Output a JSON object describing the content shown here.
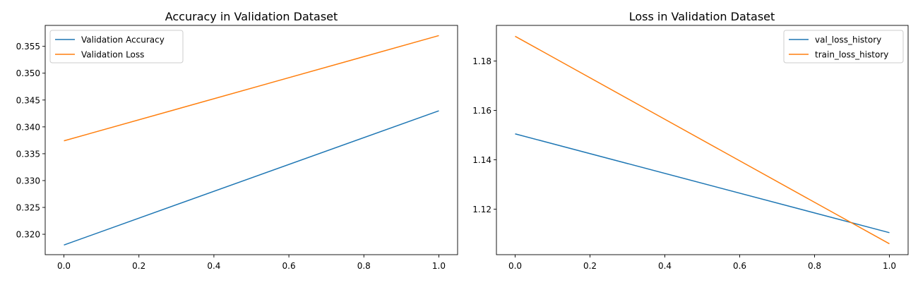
{
  "chart_data": [
    {
      "type": "line",
      "title": "Accuracy in Validation Dataset",
      "xlabel": "",
      "ylabel": "",
      "xlim": [
        -0.05,
        1.05
      ],
      "ylim": [
        0.3162,
        0.3589
      ],
      "xticks": [
        0.0,
        0.2,
        0.4,
        0.6,
        0.8,
        1.0
      ],
      "xtick_labels": [
        "0.0",
        "0.2",
        "0.4",
        "0.6",
        "0.8",
        "1.0"
      ],
      "yticks": [
        0.32,
        0.325,
        0.33,
        0.335,
        0.34,
        0.345,
        0.35,
        0.355
      ],
      "ytick_labels": [
        "0.320",
        "0.325",
        "0.330",
        "0.335",
        "0.340",
        "0.345",
        "0.350",
        "0.355"
      ],
      "legend_position": "upper-left",
      "grid": false,
      "series": [
        {
          "name": "Validation Accuracy",
          "color": "#1f77b4",
          "x": [
            0,
            1
          ],
          "y": [
            0.318,
            0.343
          ]
        },
        {
          "name": "Validation Loss",
          "color": "#ff7f0e",
          "x": [
            0,
            1
          ],
          "y": [
            0.3374,
            0.357
          ]
        }
      ]
    },
    {
      "type": "line",
      "title": "Loss in Validation Dataset",
      "xlabel": "",
      "ylabel": "",
      "xlim": [
        -0.05,
        1.05
      ],
      "ylim": [
        1.1016,
        1.1944
      ],
      "xticks": [
        0.0,
        0.2,
        0.4,
        0.6,
        0.8,
        1.0
      ],
      "xtick_labels": [
        "0.0",
        "0.2",
        "0.4",
        "0.6",
        "0.8",
        "1.0"
      ],
      "yticks": [
        1.12,
        1.14,
        1.16,
        1.18
      ],
      "ytick_labels": [
        "1.12",
        "1.14",
        "1.16",
        "1.18"
      ],
      "legend_position": "upper-right",
      "grid": false,
      "series": [
        {
          "name": "val_loss_history",
          "color": "#1f77b4",
          "x": [
            0,
            1
          ],
          "y": [
            1.1505,
            1.1105
          ]
        },
        {
          "name": "train_loss_history",
          "color": "#ff7f0e",
          "x": [
            0,
            1
          ],
          "y": [
            1.19,
            1.106
          ]
        }
      ]
    }
  ]
}
